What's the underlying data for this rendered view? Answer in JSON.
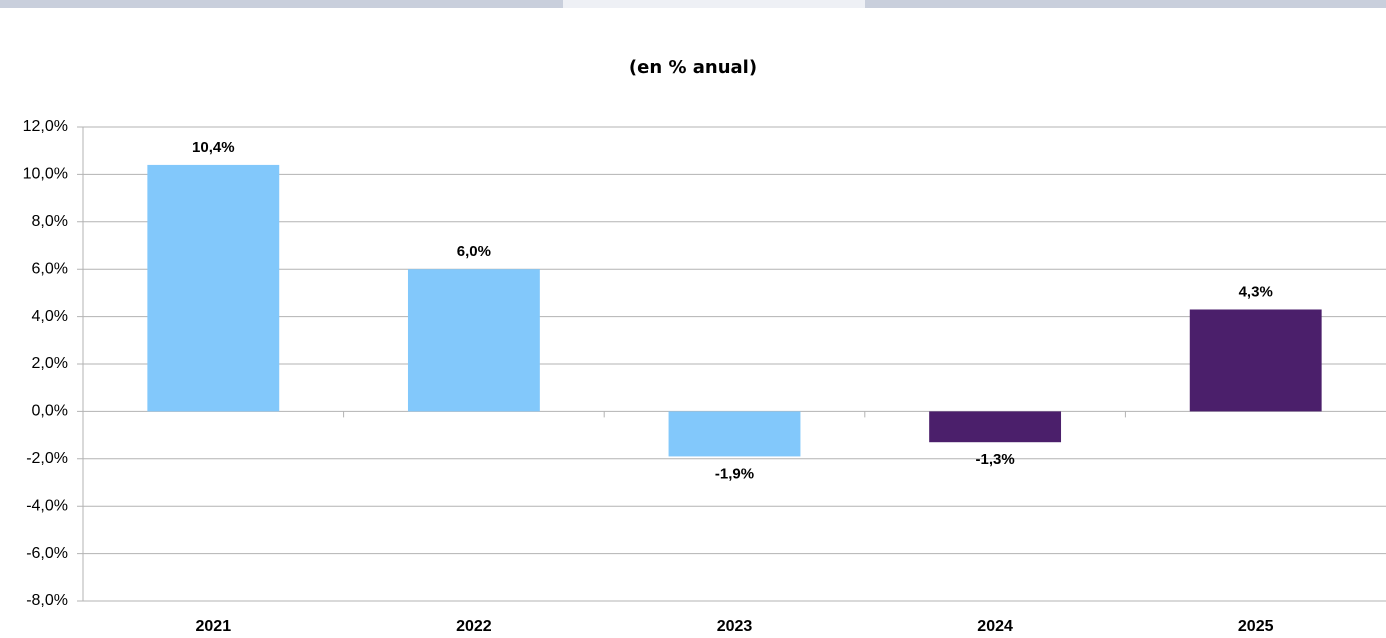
{
  "chart_data": {
    "type": "bar",
    "title": "(en % anual)",
    "categories": [
      "2021",
      "2022",
      "2023",
      "2024",
      "2025"
    ],
    "values": [
      10.4,
      6.0,
      -1.9,
      -1.3,
      4.3
    ],
    "value_labels": [
      "10,4%",
      "6,0%",
      "-1,9%",
      "-1,3%",
      "4,3%"
    ],
    "colors": [
      "#82c8fb",
      "#82c8fb",
      "#82c8fb",
      "#4b1f6b",
      "#4b1f6b"
    ],
    "ylim": [
      -8,
      12
    ],
    "yticks": [
      {
        "value": -8,
        "label": "-8,0%"
      },
      {
        "value": -6,
        "label": "-6,0%"
      },
      {
        "value": -4,
        "label": "-4,0%"
      },
      {
        "value": -2,
        "label": "-2,0%"
      },
      {
        "value": 0,
        "label": "0,0%"
      },
      {
        "value": 2,
        "label": "2,0%"
      },
      {
        "value": 4,
        "label": "4,0%"
      },
      {
        "value": 6,
        "label": "6,0%"
      },
      {
        "value": 8,
        "label": "8,0%"
      },
      {
        "value": 10,
        "label": "10,0%"
      },
      {
        "value": 12,
        "label": "12,0%"
      }
    ],
    "grid": true
  }
}
